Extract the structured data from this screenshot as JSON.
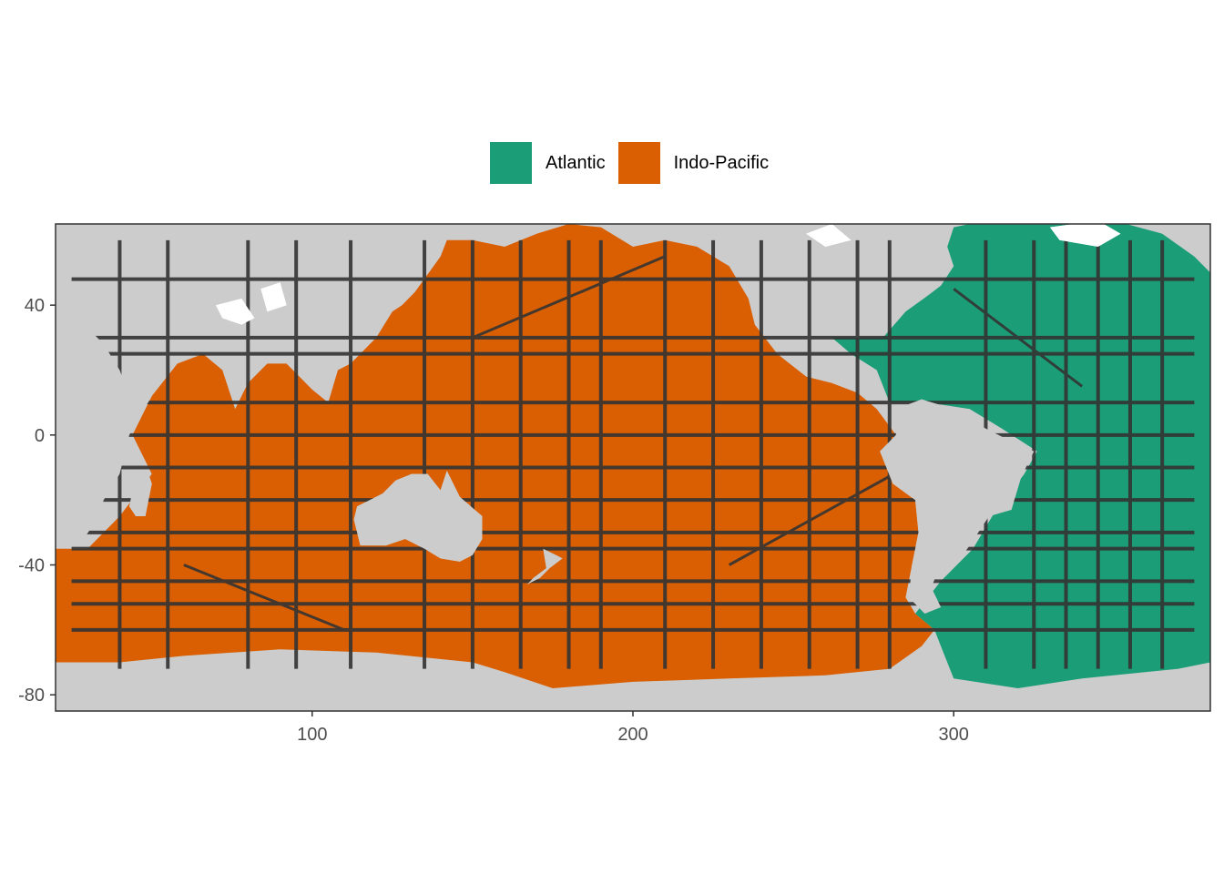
{
  "legend": {
    "items": [
      {
        "label": "Atlantic",
        "color": "#1b9e77"
      },
      {
        "label": "Indo-Pacific",
        "color": "#d95f02"
      }
    ]
  },
  "colors": {
    "land": "#cccccc",
    "tracks": "#333333",
    "ice": "#ffffff",
    "frame": "#333333"
  },
  "axes": {
    "xlim": [
      20,
      380
    ],
    "ylim": [
      -85,
      65
    ],
    "x_ticks": [
      100,
      200,
      300
    ],
    "y_ticks": [
      40,
      0,
      -40,
      -80
    ],
    "x_tick_labels": [
      "100",
      "200",
      "300"
    ],
    "y_tick_labels": [
      "40",
      "0",
      "-40",
      "-80"
    ]
  },
  "regions": [
    {
      "name": "Indo-Pacific",
      "lonlat": [
        [
          20,
          -35
        ],
        [
          30,
          -35
        ],
        [
          40,
          -25
        ],
        [
          50,
          -12
        ],
        [
          44,
          0
        ],
        [
          50,
          12
        ],
        [
          58,
          22
        ],
        [
          66,
          25
        ],
        [
          72,
          20
        ],
        [
          76,
          8
        ],
        [
          80,
          16
        ],
        [
          86,
          22
        ],
        [
          92,
          22
        ],
        [
          100,
          14
        ],
        [
          105,
          10
        ],
        [
          108,
          20
        ],
        [
          112,
          22
        ],
        [
          120,
          30
        ],
        [
          125,
          38
        ],
        [
          128,
          40
        ],
        [
          132,
          44
        ],
        [
          140,
          55
        ],
        [
          142,
          60
        ],
        [
          150,
          60
        ],
        [
          160,
          58
        ],
        [
          170,
          62
        ],
        [
          180,
          65
        ],
        [
          190,
          64
        ],
        [
          200,
          58
        ],
        [
          210,
          60
        ],
        [
          220,
          58
        ],
        [
          230,
          52
        ],
        [
          236,
          42
        ],
        [
          238,
          34
        ],
        [
          245,
          25
        ],
        [
          254,
          18
        ],
        [
          262,
          16
        ],
        [
          270,
          13
        ],
        [
          276,
          8
        ],
        [
          282,
          0
        ],
        [
          285,
          -10
        ],
        [
          288,
          -20
        ],
        [
          290,
          -30
        ],
        [
          287,
          -40
        ],
        [
          285,
          -50
        ],
        [
          288,
          -55
        ],
        [
          294,
          -60
        ],
        [
          290,
          -65
        ],
        [
          280,
          -72
        ],
        [
          260,
          -74
        ],
        [
          230,
          -75
        ],
        [
          200,
          -76
        ],
        [
          175,
          -78
        ],
        [
          160,
          -73
        ],
        [
          150,
          -70
        ],
        [
          120,
          -67
        ],
        [
          90,
          -66
        ],
        [
          60,
          -68
        ],
        [
          40,
          -70
        ],
        [
          20,
          -70
        ]
      ]
    },
    {
      "name": "Atlantic",
      "lonlat": [
        [
          300,
          64
        ],
        [
          310,
          66
        ],
        [
          330,
          66
        ],
        [
          350,
          66
        ],
        [
          365,
          62
        ],
        [
          375,
          55
        ],
        [
          380,
          50
        ],
        [
          380,
          -70
        ],
        [
          370,
          -72
        ],
        [
          340,
          -75
        ],
        [
          320,
          -78
        ],
        [
          300,
          -75
        ],
        [
          296,
          -65
        ],
        [
          294,
          -60
        ],
        [
          288,
          -55
        ],
        [
          296,
          -45
        ],
        [
          306,
          -35
        ],
        [
          312,
          -25
        ],
        [
          322,
          -12
        ],
        [
          326,
          -5
        ],
        [
          315,
          2
        ],
        [
          305,
          8
        ],
        [
          292,
          10
        ],
        [
          280,
          10
        ],
        [
          276,
          20
        ],
        [
          268,
          25
        ],
        [
          262,
          30
        ],
        [
          270,
          30
        ],
        [
          278,
          30
        ],
        [
          285,
          38
        ],
        [
          292,
          43
        ],
        [
          296,
          46
        ],
        [
          300,
          52
        ],
        [
          298,
          58
        ],
        [
          300,
          64
        ]
      ]
    }
  ],
  "land": [
    {
      "name": "Australia",
      "lonlat": [
        [
          114,
          -22
        ],
        [
          113,
          -26
        ],
        [
          115,
          -34
        ],
        [
          123,
          -34
        ],
        [
          129,
          -32
        ],
        [
          135,
          -35
        ],
        [
          140,
          -38
        ],
        [
          146,
          -39
        ],
        [
          150,
          -37
        ],
        [
          153,
          -32
        ],
        [
          153,
          -25
        ],
        [
          146,
          -19
        ],
        [
          142,
          -11
        ],
        [
          140,
          -17
        ],
        [
          136,
          -12
        ],
        [
          131,
          -12
        ],
        [
          126,
          -14
        ],
        [
          122,
          -18
        ]
      ]
    },
    {
      "name": "Madagascar",
      "lonlat": [
        [
          49,
          -12
        ],
        [
          50,
          -15
        ],
        [
          48,
          -25
        ],
        [
          45,
          -25
        ],
        [
          43,
          -22
        ],
        [
          44,
          -17
        ]
      ]
    },
    {
      "name": "Africa",
      "lonlat": [
        [
          20,
          -35
        ],
        [
          28,
          -33
        ],
        [
          33,
          -26
        ],
        [
          35,
          -20
        ],
        [
          40,
          -12
        ],
        [
          43,
          0
        ],
        [
          50,
          12
        ],
        [
          43,
          12
        ],
        [
          40,
          20
        ],
        [
          35,
          28
        ],
        [
          32,
          31
        ],
        [
          20,
          33
        ],
        [
          10,
          37
        ],
        [
          0,
          36
        ],
        [
          -10,
          30
        ],
        [
          -17,
          20
        ],
        [
          -17,
          12
        ],
        [
          -10,
          5
        ],
        [
          0,
          5
        ],
        [
          9,
          4
        ],
        [
          12,
          -5
        ],
        [
          13,
          -15
        ],
        [
          16,
          -28
        ]
      ]
    },
    {
      "name": "South America",
      "lonlat": [
        [
          282,
          0
        ],
        [
          277,
          -5
        ],
        [
          281,
          -15
        ],
        [
          288,
          -20
        ],
        [
          289,
          -30
        ],
        [
          287,
          -40
        ],
        [
          286,
          -50
        ],
        [
          291,
          -55
        ],
        [
          296,
          -53
        ],
        [
          293,
          -47
        ],
        [
          295,
          -42
        ],
        [
          302,
          -38
        ],
        [
          305,
          -34
        ],
        [
          311,
          -25
        ],
        [
          318,
          -23
        ],
        [
          321,
          -13
        ],
        [
          325,
          -5
        ],
        [
          320,
          -3
        ],
        [
          310,
          2
        ],
        [
          300,
          8
        ],
        [
          290,
          11
        ],
        [
          282,
          8
        ]
      ]
    },
    {
      "name": "New Zealand",
      "lonlat": [
        [
          167,
          -46
        ],
        [
          171,
          -44
        ],
        [
          174,
          -41
        ],
        [
          178,
          -38
        ],
        [
          176,
          -37
        ],
        [
          172,
          -35
        ],
        [
          173,
          -41
        ],
        [
          169,
          -44
        ]
      ]
    }
  ],
  "ice": [
    {
      "name": "Himalaya",
      "lonlat": [
        [
          70,
          40
        ],
        [
          78,
          42
        ],
        [
          82,
          36
        ],
        [
          78,
          34
        ],
        [
          72,
          36
        ]
      ]
    },
    {
      "name": "Tibet",
      "lonlat": [
        [
          84,
          45
        ],
        [
          90,
          47
        ],
        [
          92,
          40
        ],
        [
          86,
          38
        ]
      ]
    },
    {
      "name": "Arctic-Greenland",
      "lonlat": [
        [
          330,
          64
        ],
        [
          345,
          66
        ],
        [
          352,
          62
        ],
        [
          345,
          58
        ],
        [
          333,
          60
        ]
      ]
    },
    {
      "name": "Rockies",
      "lonlat": [
        [
          254,
          62
        ],
        [
          262,
          65
        ],
        [
          268,
          60
        ],
        [
          260,
          58
        ]
      ]
    }
  ]
}
